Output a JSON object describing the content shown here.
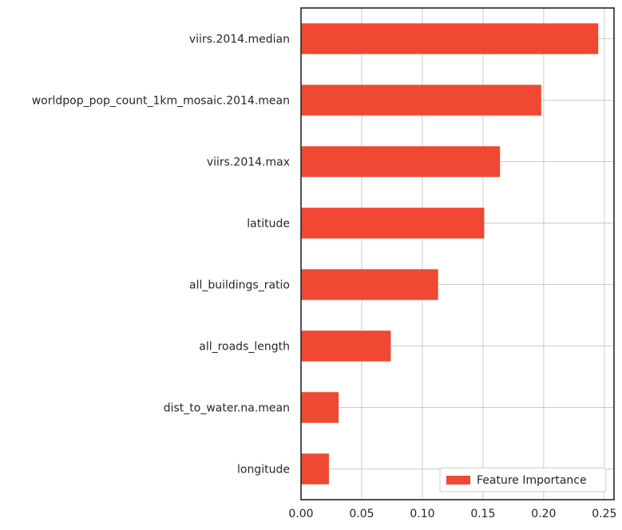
{
  "chart_data": {
    "type": "bar",
    "orientation": "horizontal",
    "categories": [
      "viirs.2014.median",
      "worldpop_pop_count_1km_mosaic.2014.mean",
      "viirs.2014.max",
      "latitude",
      "all_buildings_ratio",
      "all_roads_length",
      "dist_to_water.na.mean",
      "longitude"
    ],
    "series": [
      {
        "name": "Feature Importance",
        "values": [
          0.245,
          0.198,
          0.164,
          0.151,
          0.113,
          0.074,
          0.031,
          0.023
        ]
      }
    ],
    "title": "",
    "xlabel": "",
    "ylabel": "",
    "xlim": [
      0,
      0.258
    ],
    "xticks": [
      0,
      0.05,
      0.1,
      0.15,
      0.2,
      0.25
    ],
    "xtick_labels": [
      "0.00",
      "0.05",
      "0.10",
      "0.15",
      "0.20",
      "0.25"
    ],
    "grid": true,
    "legend_position": "lower-right",
    "colors": {
      "bar": "#F04832",
      "grid": "#CCCCCC",
      "axis": "#262626",
      "text": "#262626"
    }
  }
}
